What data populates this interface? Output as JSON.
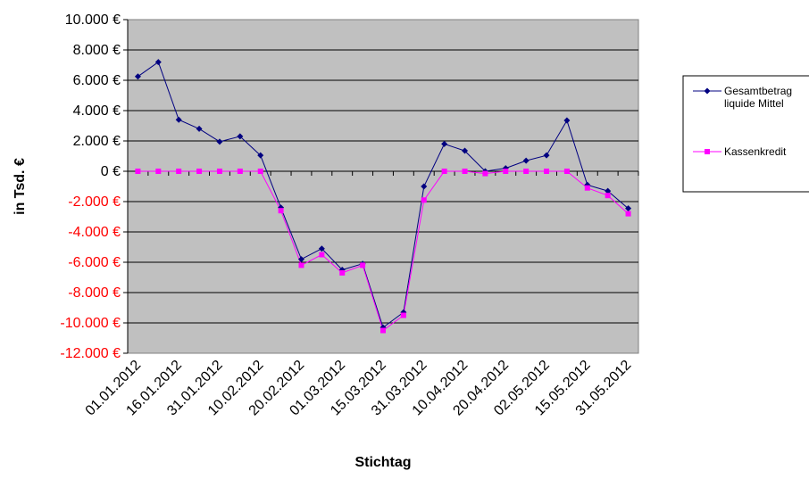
{
  "chart_data": {
    "type": "line",
    "xlabel": "Stichtag",
    "ylabel": "in Tsd. €",
    "ylim": [
      -12000,
      10000
    ],
    "y_ticks": [
      {
        "value": 10000,
        "label": "10.000 €"
      },
      {
        "value": 8000,
        "label": "8.000 €"
      },
      {
        "value": 6000,
        "label": "6.000 €"
      },
      {
        "value": 4000,
        "label": "4.000 €"
      },
      {
        "value": 2000,
        "label": "2.000 €"
      },
      {
        "value": 0,
        "label": "0 €"
      },
      {
        "value": -2000,
        "label": "-2.000 €"
      },
      {
        "value": -4000,
        "label": "-4.000 €"
      },
      {
        "value": -6000,
        "label": "-6.000 €"
      },
      {
        "value": -8000,
        "label": "-8.000 €"
      },
      {
        "value": -10000,
        "label": "-10.000 €"
      },
      {
        "value": -12000,
        "label": "-12.000 €"
      }
    ],
    "x_tick_labels": [
      "01.01.2012",
      "16.01.2012",
      "31.01.2012",
      "10.02.2012",
      "20.02.2012",
      "01.03.2012",
      "15.03.2012",
      "31.03.2012",
      "10.04.2012",
      "20.04.2012",
      "02.05.2012",
      "15.05.2012",
      "31.05.2012"
    ],
    "x_tick_indices": [
      0,
      2,
      4,
      6,
      8,
      10,
      12,
      14,
      16,
      18,
      20,
      22,
      24
    ],
    "point_count": 25,
    "grid": true,
    "plot_background": "#c0c0c0",
    "legend_position": "right",
    "series": [
      {
        "name": "Gesamtbetrag liquide Mittel",
        "legend_lines": [
          "Gesamtbetrag",
          "liquide Mittel"
        ],
        "color": "#000080",
        "marker": "diamond",
        "values": [
          6250,
          7200,
          3400,
          2800,
          1950,
          2300,
          1050,
          -2400,
          -5800,
          -5100,
          -6500,
          -6100,
          -10300,
          -9300,
          -1000,
          1800,
          1350,
          0,
          200,
          700,
          1050,
          3350,
          -900,
          -1300,
          -2450
        ]
      },
      {
        "name": "Kassenkredit",
        "legend_lines": [
          "Kassenkredit"
        ],
        "color": "#ff00ff",
        "marker": "square",
        "values": [
          0,
          0,
          0,
          0,
          0,
          0,
          0,
          -2600,
          -6200,
          -5500,
          -6700,
          -6200,
          -10500,
          -9500,
          -1900,
          0,
          0,
          -150,
          0,
          0,
          0,
          0,
          -1100,
          -1600,
          -2800
        ]
      }
    ]
  }
}
